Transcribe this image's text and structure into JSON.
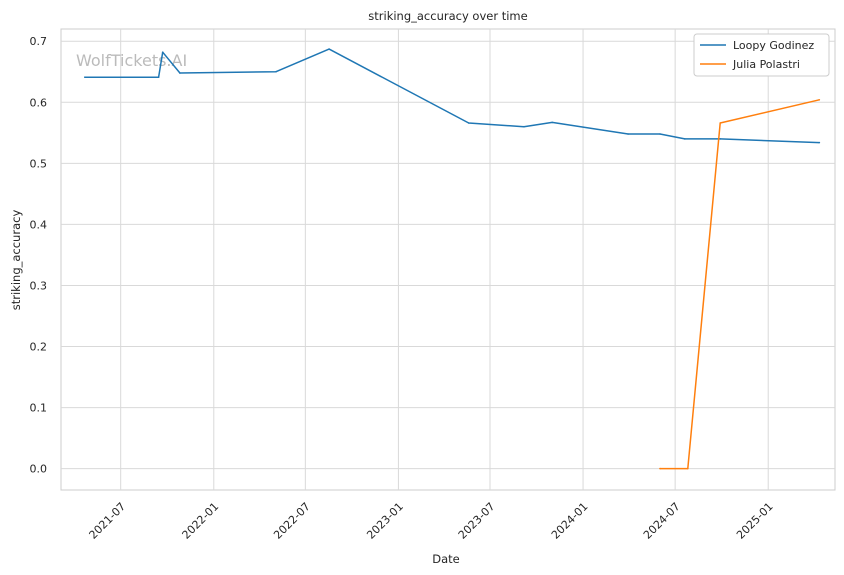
{
  "chart_data": {
    "type": "line",
    "title": "striking_accuracy over time",
    "xlabel": "Date",
    "ylabel": "striking_accuracy",
    "watermark": "WolfTickets.AI",
    "grid": true,
    "legend_position": "top-right",
    "xlim": [
      "2021-03-05",
      "2025-05-13"
    ],
    "ylim": [
      -0.035,
      0.72
    ],
    "x_ticks": [
      "2021-07",
      "2022-01",
      "2022-07",
      "2023-01",
      "2023-07",
      "2024-01",
      "2024-07",
      "2025-01"
    ],
    "y_ticks": [
      "0.0",
      "0.1",
      "0.2",
      "0.3",
      "0.4",
      "0.5",
      "0.6",
      "0.7"
    ],
    "series": [
      {
        "name": "Loopy Godinez",
        "color": "#1f77b4",
        "points": [
          [
            "2021-04-21",
            0.641
          ],
          [
            "2021-09-14",
            0.641
          ],
          [
            "2021-09-22",
            0.682
          ],
          [
            "2021-10-26",
            0.648
          ],
          [
            "2022-05-04",
            0.65
          ],
          [
            "2022-08-17",
            0.687
          ],
          [
            "2023-05-20",
            0.566
          ],
          [
            "2023-09-06",
            0.56
          ],
          [
            "2023-11-01",
            0.567
          ],
          [
            "2024-03-30",
            0.548
          ],
          [
            "2024-06-01",
            0.548
          ],
          [
            "2024-07-20",
            0.54
          ],
          [
            "2024-09-28",
            0.54
          ],
          [
            "2025-04-12",
            0.534
          ]
        ]
      },
      {
        "name": "Julia Polastri",
        "color": "#ff7f0e",
        "points": [
          [
            "2024-06-01",
            0.0
          ],
          [
            "2024-07-26",
            0.0
          ],
          [
            "2024-09-28",
            0.566
          ],
          [
            "2025-04-12",
            0.604
          ]
        ]
      }
    ]
  }
}
